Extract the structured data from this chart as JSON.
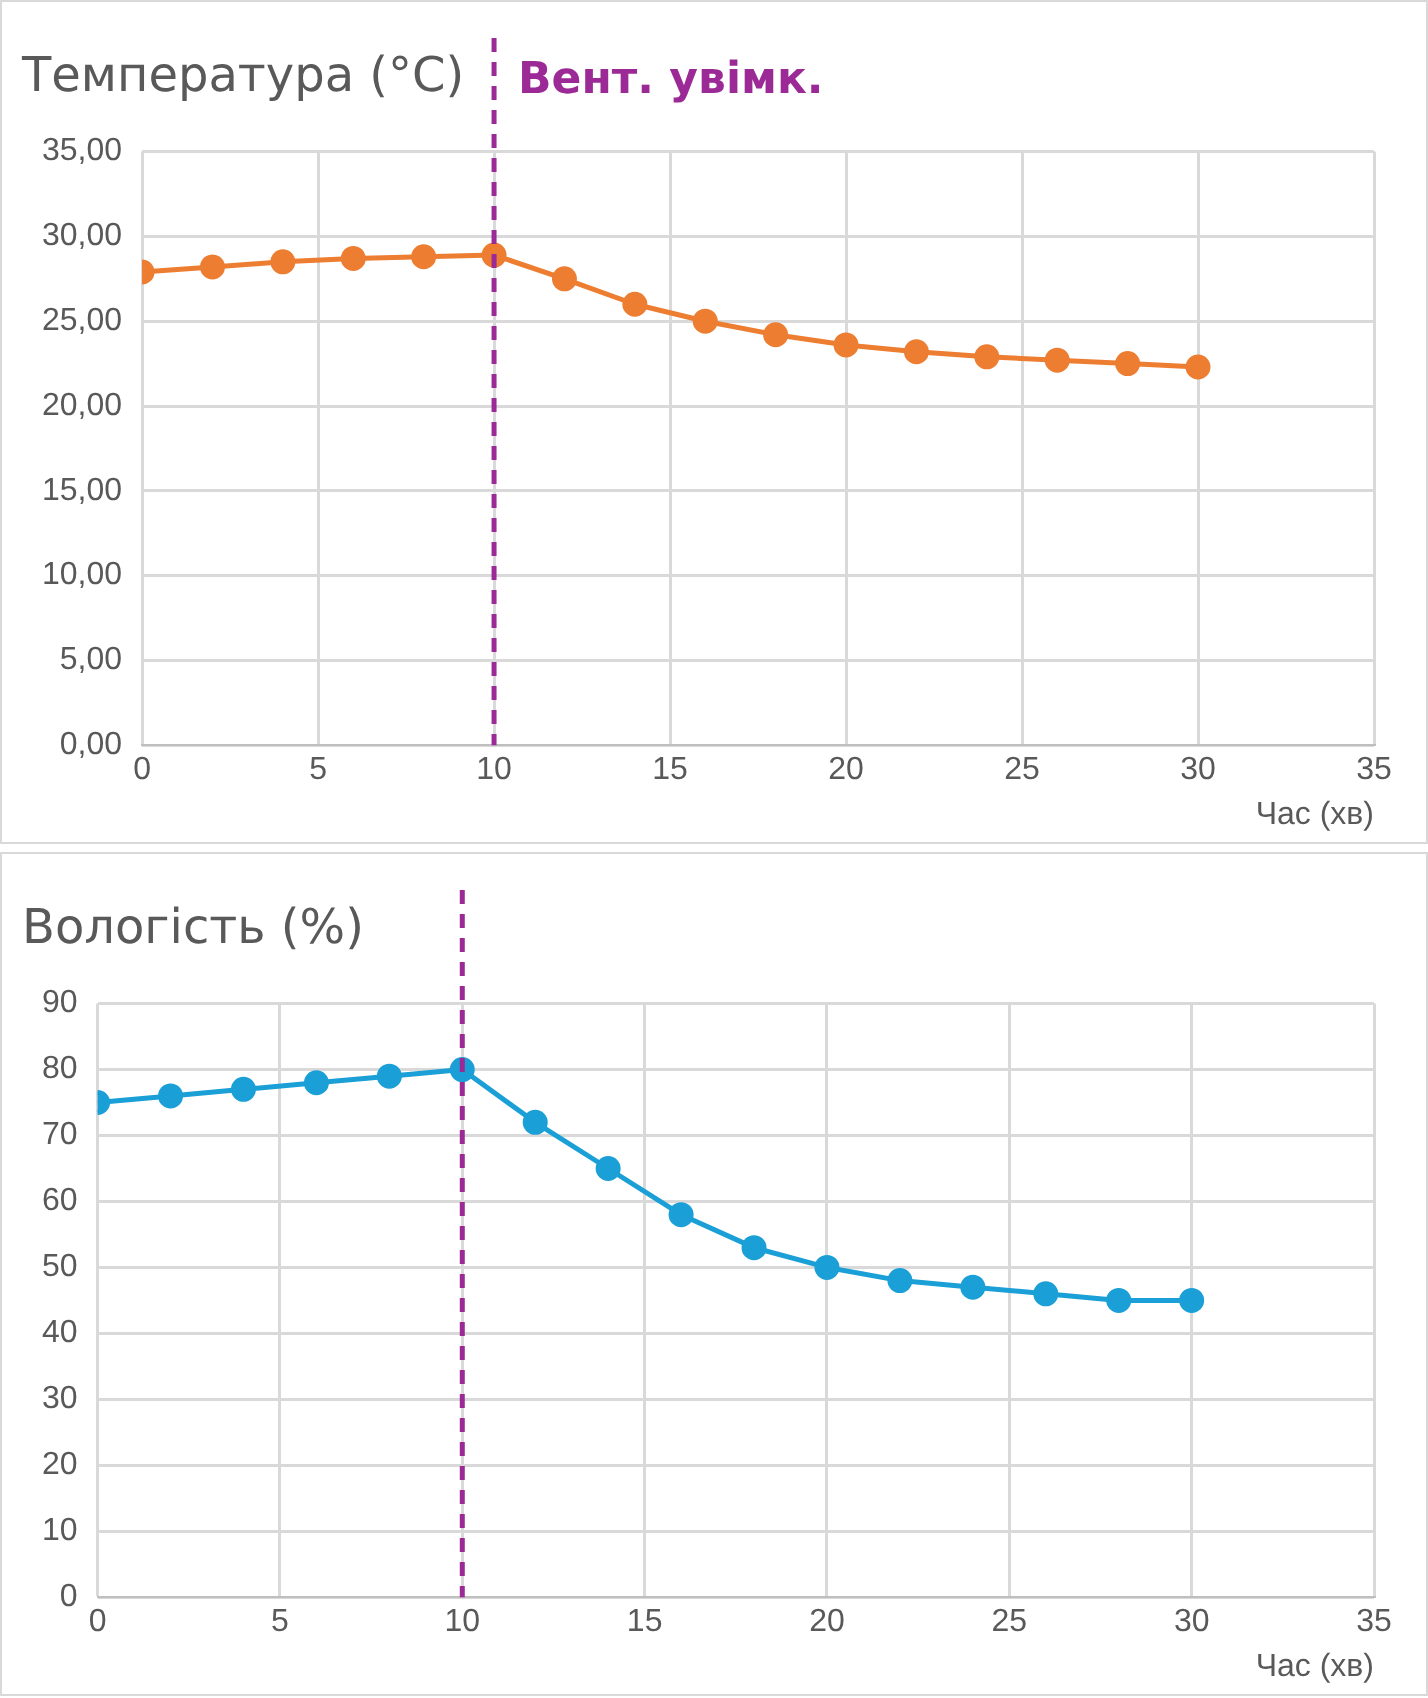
{
  "chart_data": [
    {
      "type": "line",
      "title": "Температура (°C)",
      "xlabel": "Час (хв)",
      "x": [
        0,
        2,
        4,
        6,
        8,
        10,
        12,
        14,
        16,
        18,
        20,
        22,
        24,
        26,
        28,
        30
      ],
      "series": [
        {
          "color": "#ed7d31",
          "values": [
            27.9,
            28.2,
            28.5,
            28.7,
            28.8,
            28.9,
            27.5,
            26,
            25,
            24.2,
            23.6,
            23.2,
            22.9,
            22.7,
            22.5,
            22.3
          ]
        }
      ],
      "xlim": [
        0,
        35
      ],
      "xticks": [
        0,
        5,
        10,
        15,
        20,
        25,
        30,
        35
      ],
      "ylim": [
        0,
        35
      ],
      "yticks": [
        {
          "value": 0,
          "label": "0,00"
        },
        {
          "value": 5,
          "label": "5,00"
        },
        {
          "value": 10,
          "label": "10,00"
        },
        {
          "value": 15,
          "label": "15,00"
        },
        {
          "value": 20,
          "label": "20,00"
        },
        {
          "value": 25,
          "label": "25,00"
        },
        {
          "value": 30,
          "label": "30,00"
        },
        {
          "value": 35,
          "label": "35,00"
        }
      ],
      "grid": true,
      "legend": false,
      "marker": "circle",
      "line_style": "solid",
      "ref_lines": [
        {
          "axis": "x",
          "value": 10,
          "label": "Вент. увімк.",
          "color": "#9b2a96",
          "line_style": "dashed"
        }
      ]
    },
    {
      "type": "line",
      "title": "Вологість (%)",
      "xlabel": "Час (хв)",
      "x": [
        0,
        2,
        4,
        6,
        8,
        10,
        12,
        14,
        16,
        18,
        20,
        22,
        24,
        26,
        28,
        30
      ],
      "series": [
        {
          "color": "#1a9fd6",
          "values": [
            75,
            76,
            77,
            78,
            79,
            80,
            72,
            65,
            58,
            53,
            50,
            48,
            47,
            46,
            45,
            45
          ]
        }
      ],
      "xlim": [
        0,
        35
      ],
      "xticks": [
        0,
        5,
        10,
        15,
        20,
        25,
        30,
        35
      ],
      "ylim": [
        0,
        90
      ],
      "yticks": [
        0,
        10,
        20,
        30,
        40,
        50,
        60,
        70,
        80,
        90
      ],
      "grid": true,
      "legend": false,
      "marker": "circle",
      "line_style": "solid",
      "ref_lines": [
        {
          "axis": "x",
          "value": 10,
          "color": "#9b2a96",
          "line_style": "dashed"
        }
      ]
    }
  ]
}
